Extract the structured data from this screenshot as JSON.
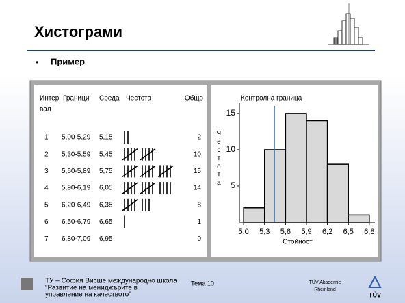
{
  "header": {
    "title": "Хистограми",
    "bullet": "Пример"
  },
  "table": {
    "columns": [
      [
        "Интер-",
        "вал"
      ],
      "Граници",
      "Среда",
      "Честота",
      "Общо"
    ],
    "rows": [
      [
        1,
        "5,00-5,29",
        "5,15",
        2
      ],
      [
        2,
        "5,30-5,59",
        "5,45",
        10
      ],
      [
        3,
        "5,60-5,89",
        "5,75",
        15
      ],
      [
        4,
        "5,90-6,19",
        "6,05",
        14
      ],
      [
        5,
        "6,20-6,49",
        "6,35",
        8
      ],
      [
        6,
        "6,50-6,79",
        "6,65",
        1
      ],
      [
        7,
        "6,80-7,09",
        "6,95",
        0
      ]
    ]
  },
  "chart_data": {
    "type": "histogram",
    "bins": [
      5.0,
      5.3,
      5.6,
      5.9,
      6.2,
      6.5,
      6.8
    ],
    "values": [
      2,
      10,
      15,
      14,
      8,
      1
    ],
    "color": "#d9d9d9",
    "xlim": [
      4.94,
      6.88
    ],
    "ylim": [
      0,
      16.5
    ],
    "xticks": [
      {
        "value": 5.0,
        "label": "5,0"
      },
      {
        "value": 5.3,
        "label": "5,3"
      },
      {
        "value": 5.6,
        "label": "5,6"
      },
      {
        "value": 5.9,
        "label": "5,9"
      },
      {
        "value": 6.2,
        "label": "6,2"
      },
      {
        "value": 6.5,
        "label": "6,5"
      },
      {
        "value": 6.8,
        "label": "6,8"
      }
    ],
    "yticks": [
      5,
      10,
      15
    ],
    "xlabel": "Стойност",
    "ylabel": "Честота",
    "annotation": {
      "text": "Контролна граница",
      "x": 5.44,
      "color": "#3a6fb0"
    }
  },
  "footer": {
    "left": [
      "ТУ – София Висше международно школа",
      "\"Развитие на мениджърите в",
      "управление на качеството\""
    ],
    "center": "Тема 10",
    "right": [
      "TÜV Akademie",
      "Rheinland"
    ],
    "logo": "TÜV"
  }
}
